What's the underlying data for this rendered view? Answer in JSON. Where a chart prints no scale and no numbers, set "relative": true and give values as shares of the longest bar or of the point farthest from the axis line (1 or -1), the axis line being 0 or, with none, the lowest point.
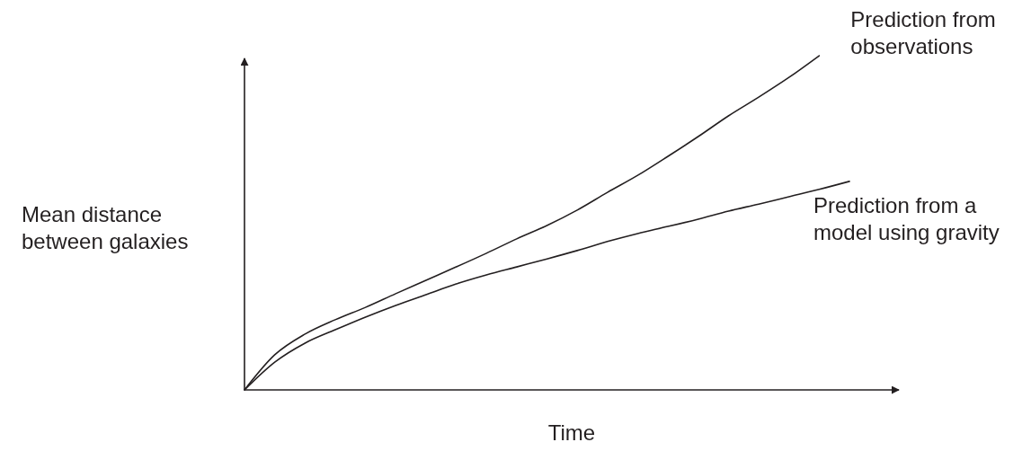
{
  "chart_data": {
    "type": "line",
    "relative": true,
    "xlabel": "Time",
    "ylabel": "Mean distance between galaxies",
    "categories": [
      null,
      null,
      null,
      null,
      null,
      null,
      null,
      null,
      null,
      null,
      null,
      null,
      null,
      null,
      null,
      null,
      null,
      null,
      null,
      null,
      null
    ],
    "series": [
      {
        "name": "Prediction from observations",
        "color": "#231f20",
        "values": [
          0,
          0.105,
          0.167,
          0.21,
          0.247,
          0.288,
          0.328,
          0.368,
          0.409,
          0.452,
          0.492,
          0.538,
          0.591,
          0.642,
          0.699,
          0.758,
          0.82,
          0.876,
          0.935,
          1,
          null
        ]
      },
      {
        "name": "Prediction from a model using gravity",
        "color": "#231f20",
        "values": [
          0,
          0.083,
          0.14,
          0.18,
          0.218,
          0.253,
          0.285,
          0.317,
          0.344,
          0.368,
          0.392,
          0.417,
          0.444,
          0.468,
          0.489,
          0.511,
          0.535,
          0.556,
          0.578,
          0.6,
          0.624
        ]
      }
    ]
  }
}
